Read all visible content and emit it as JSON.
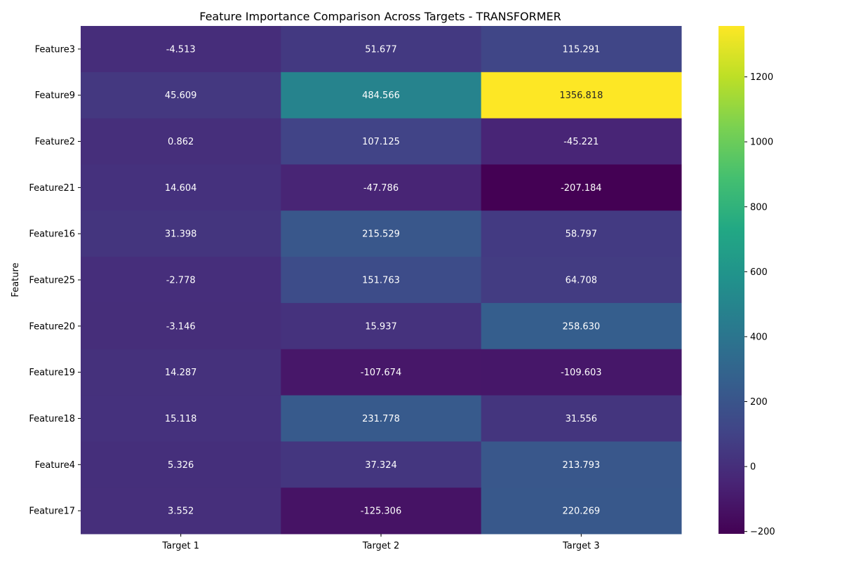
{
  "chart_data": {
    "type": "heatmap",
    "title": "Feature Importance Comparison Across Targets - TRANSFORMER",
    "xlabel": "",
    "ylabel": "Feature",
    "colormap": "viridis",
    "vmin": -207.184,
    "vmax": 1356.818,
    "colorbar_ticks": [
      -200,
      0,
      200,
      400,
      600,
      800,
      1000,
      1200
    ],
    "colorbar_tick_labels": [
      "−200",
      "0",
      "200",
      "400",
      "600",
      "800",
      "1000",
      "1200"
    ],
    "x_categories": [
      "Target 1",
      "Target 2",
      "Target 3"
    ],
    "y_categories": [
      "Feature3",
      "Feature9",
      "Feature2",
      "Feature21",
      "Feature16",
      "Feature25",
      "Feature20",
      "Feature19",
      "Feature18",
      "Feature4",
      "Feature17"
    ],
    "values": [
      [
        -4.513,
        51.677,
        115.291
      ],
      [
        45.609,
        484.566,
        1356.818
      ],
      [
        0.862,
        107.125,
        -45.221
      ],
      [
        14.604,
        -47.786,
        -207.184
      ],
      [
        31.398,
        215.529,
        58.797
      ],
      [
        -2.778,
        151.763,
        64.708
      ],
      [
        -3.146,
        15.937,
        258.63
      ],
      [
        14.287,
        -107.674,
        -109.603
      ],
      [
        15.118,
        231.778,
        31.556
      ],
      [
        5.326,
        37.324,
        213.793
      ],
      [
        3.552,
        -125.306,
        220.269
      ]
    ],
    "value_labels": [
      [
        "-4.513",
        "51.677",
        "115.291"
      ],
      [
        "45.609",
        "484.566",
        "1356.818"
      ],
      [
        "0.862",
        "107.125",
        "-45.221"
      ],
      [
        "14.604",
        "-47.786",
        "-207.184"
      ],
      [
        "31.398",
        "215.529",
        "58.797"
      ],
      [
        "-2.778",
        "151.763",
        "64.708"
      ],
      [
        "-3.146",
        "15.937",
        "258.630"
      ],
      [
        "14.287",
        "-107.674",
        "-109.603"
      ],
      [
        "15.118",
        "231.778",
        "31.556"
      ],
      [
        "5.326",
        "37.324",
        "213.793"
      ],
      [
        "3.552",
        "-125.306",
        "220.269"
      ]
    ]
  }
}
